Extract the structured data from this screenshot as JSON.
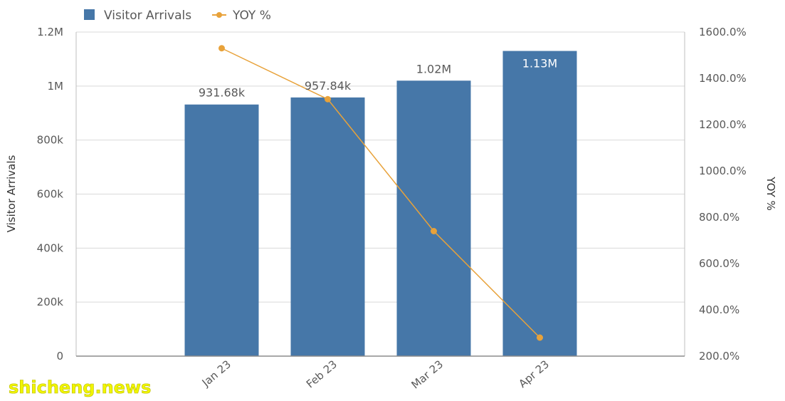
{
  "chart_data": {
    "type": "bar",
    "categories": [
      "Jan 23",
      "Feb 23",
      "Mar 23",
      "Apr 23"
    ],
    "series": [
      {
        "name": "Visitor Arrivals",
        "kind": "bar",
        "axis": "left",
        "color": "#4677a8",
        "values": [
          931680,
          957840,
          1020000,
          1130000
        ],
        "labels": [
          "931.68k",
          "957.84k",
          "1.02M",
          "1.13M"
        ]
      },
      {
        "name": "YOY %",
        "kind": "line",
        "axis": "right",
        "color": "#e8a23a",
        "values": [
          1530,
          1310,
          740,
          280
        ]
      }
    ],
    "ylabel": "Visitor Arrivals",
    "ylabel_right": "YOY %",
    "ylim": [
      0,
      1200000
    ],
    "ylim_right": [
      200,
      1600
    ],
    "yticks_left": [
      {
        "v": 0,
        "label": "0"
      },
      {
        "v": 200000,
        "label": "200k"
      },
      {
        "v": 400000,
        "label": "400k"
      },
      {
        "v": 600000,
        "label": "600k"
      },
      {
        "v": 800000,
        "label": "800k"
      },
      {
        "v": 1000000,
        "label": "1M"
      },
      {
        "v": 1200000,
        "label": "1.2M"
      }
    ],
    "yticks_right": [
      {
        "v": 200,
        "label": "200.0%"
      },
      {
        "v": 400,
        "label": "400.0%"
      },
      {
        "v": 600,
        "label": "600.0%"
      },
      {
        "v": 800,
        "label": "800.0%"
      },
      {
        "v": 1000,
        "label": "1000.0%"
      },
      {
        "v": 1200,
        "label": "1200.0%"
      },
      {
        "v": 1400,
        "label": "1400.0%"
      },
      {
        "v": 1600,
        "label": "1600.0%"
      }
    ],
    "grid": true,
    "legend_position": "top-left"
  },
  "watermark": "shicheng.news"
}
